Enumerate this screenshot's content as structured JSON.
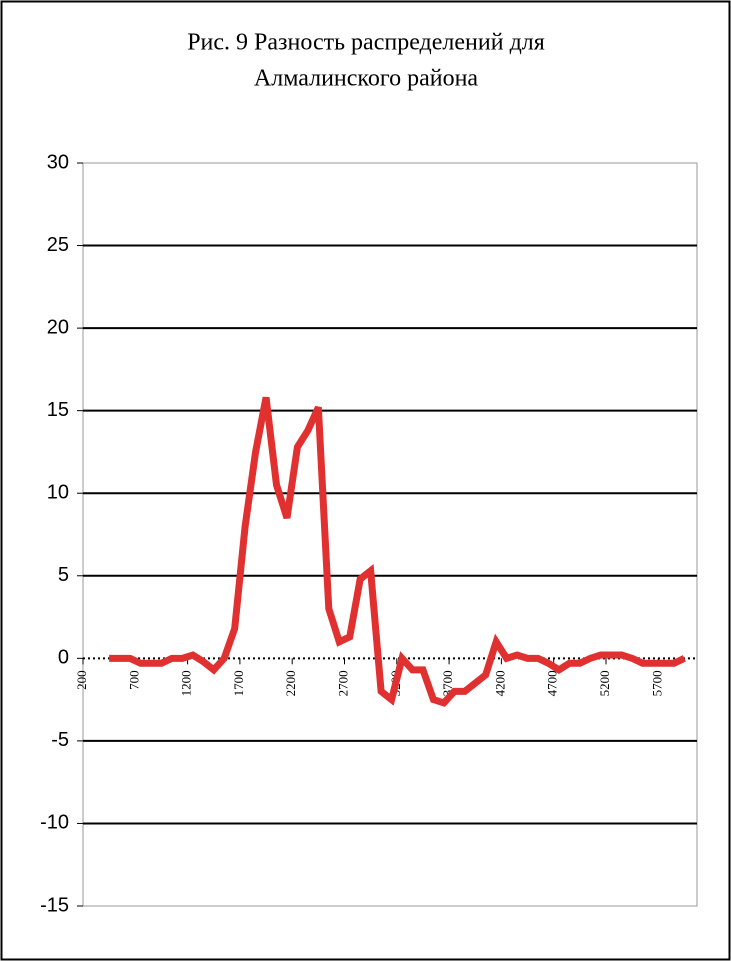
{
  "chart_data": {
    "type": "line",
    "title": [
      "Рис. 9 Разность распределений для",
      "Алмалинского района"
    ],
    "x": [
      450,
      550,
      650,
      750,
      850,
      950,
      1050,
      1150,
      1250,
      1350,
      1450,
      1550,
      1650,
      1750,
      1850,
      1950,
      2050,
      2150,
      2250,
      2350,
      2450,
      2550,
      2650,
      2750,
      2850,
      2950,
      3050,
      3150,
      3250,
      3350,
      3450,
      3550,
      3650,
      3750,
      3850,
      3950,
      4050,
      4150,
      4250,
      4350,
      4450,
      4550,
      4650,
      4750,
      4850,
      4950,
      5050,
      5150,
      5250,
      5350,
      5450,
      5550,
      5650,
      5750,
      5850,
      5950
    ],
    "series": [
      {
        "color": "#e03030",
        "values": [
          0,
          0,
          0,
          -0.3,
          -0.3,
          -0.3,
          0,
          0,
          0.2,
          -0.2,
          -0.7,
          0,
          1.8,
          8,
          12.5,
          15.8,
          10.5,
          8.5,
          12.8,
          13.8,
          15.2,
          3,
          1,
          1.3,
          4.8,
          5.3,
          -2,
          -2.5,
          0,
          -0.7,
          -0.7,
          -2.5,
          -2.7,
          -2,
          -2,
          -1.5,
          -1,
          1,
          0,
          0.2,
          0,
          0,
          -0.3,
          -0.7,
          -0.3,
          -0.3,
          0,
          0.2,
          0.2,
          0.2,
          0,
          -0.3,
          -0.3,
          -0.3,
          -0.3,
          0
        ]
      }
    ],
    "xlim": [
      200,
      6070
    ],
    "xticks": [
      200,
      700,
      1200,
      1700,
      2200,
      2700,
      3200,
      3700,
      4200,
      4700,
      5200,
      5700
    ],
    "ylim": [
      -15,
      30
    ],
    "yticks": [
      -15,
      -10,
      -5,
      0,
      5,
      10,
      15,
      20,
      25,
      30
    ],
    "grid": true
  }
}
